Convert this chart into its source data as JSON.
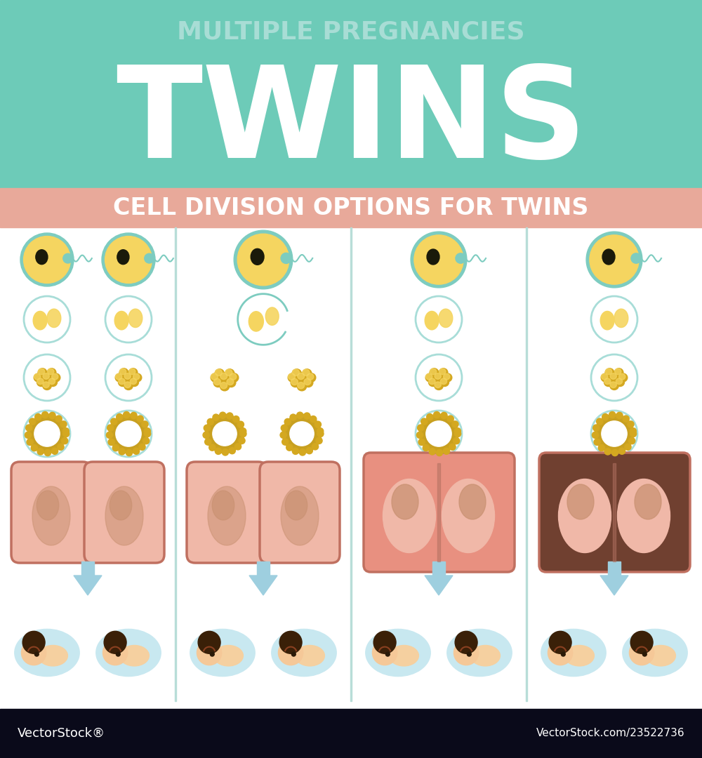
{
  "title_line1": "MULTIPLE PREGNANCIES",
  "title_line2": "TWINS",
  "subtitle": "CELL DIVISION OPTIONS FOR TWINS",
  "header_bg": "#6DCBB8",
  "subtitle_bg": "#E8A99A",
  "title_color1": "#A8DDD5",
  "title_color2": "#FFFFFF",
  "subtitle_color": "#FFFFFF",
  "main_bg": "#FFFFFF",
  "divider_color": "#B8DDD8",
  "arrow_color": "#9ECFDF",
  "baby_circle_color": "#C8E8F0",
  "egg_yellow": "#F5D560",
  "egg_yellow_dark": "#D4A820",
  "egg_teal_ring": "#7DCCC0",
  "egg_teal_ring_light": "#A8DDD8",
  "sperm_color": "#7DCCC0",
  "blastocyst_outer": "#C8A020",
  "womb_pink": "#F0B8A8",
  "womb_border": "#C07060",
  "womb_salmon_bg": "#E89080",
  "womb_dark_bg": "#704030",
  "footer_bg": "#0A0A1A",
  "footer_text": "#FFFFFF"
}
